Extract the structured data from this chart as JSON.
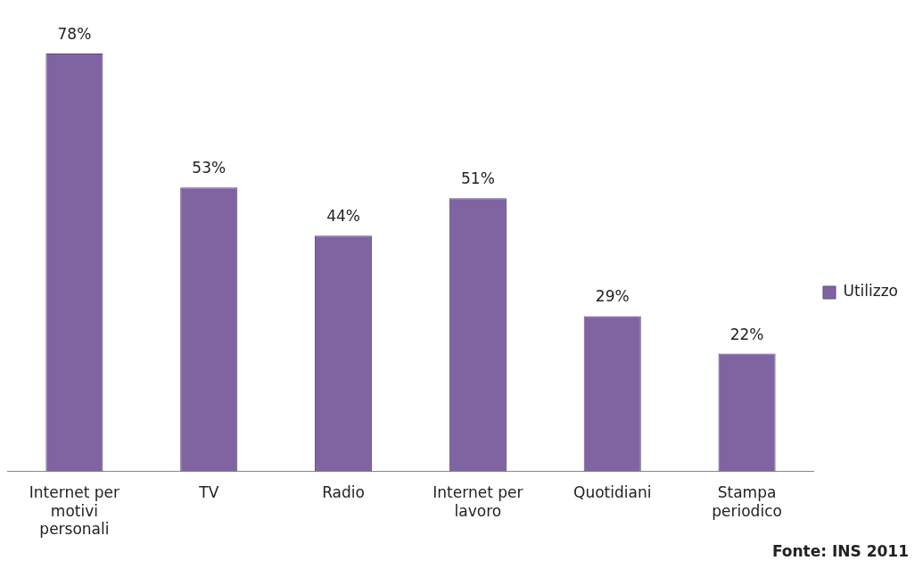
{
  "chart_data": {
    "type": "bar",
    "categories": [
      "Internet per motivi personali",
      "TV",
      "Radio",
      "Internet per lavoro",
      "Quotidiani",
      "Stampa periodico"
    ],
    "series": [
      {
        "name": "Utilizzo",
        "color": "#8064a2",
        "values": [
          78,
          53,
          44,
          51,
          29,
          22
        ],
        "value_labels": [
          "78%",
          "53%",
          "44%",
          "51%",
          "29%",
          "22%"
        ]
      }
    ],
    "legend": "right",
    "grid": false,
    "annotations": [
      "Fonte: INS 2011"
    ]
  }
}
